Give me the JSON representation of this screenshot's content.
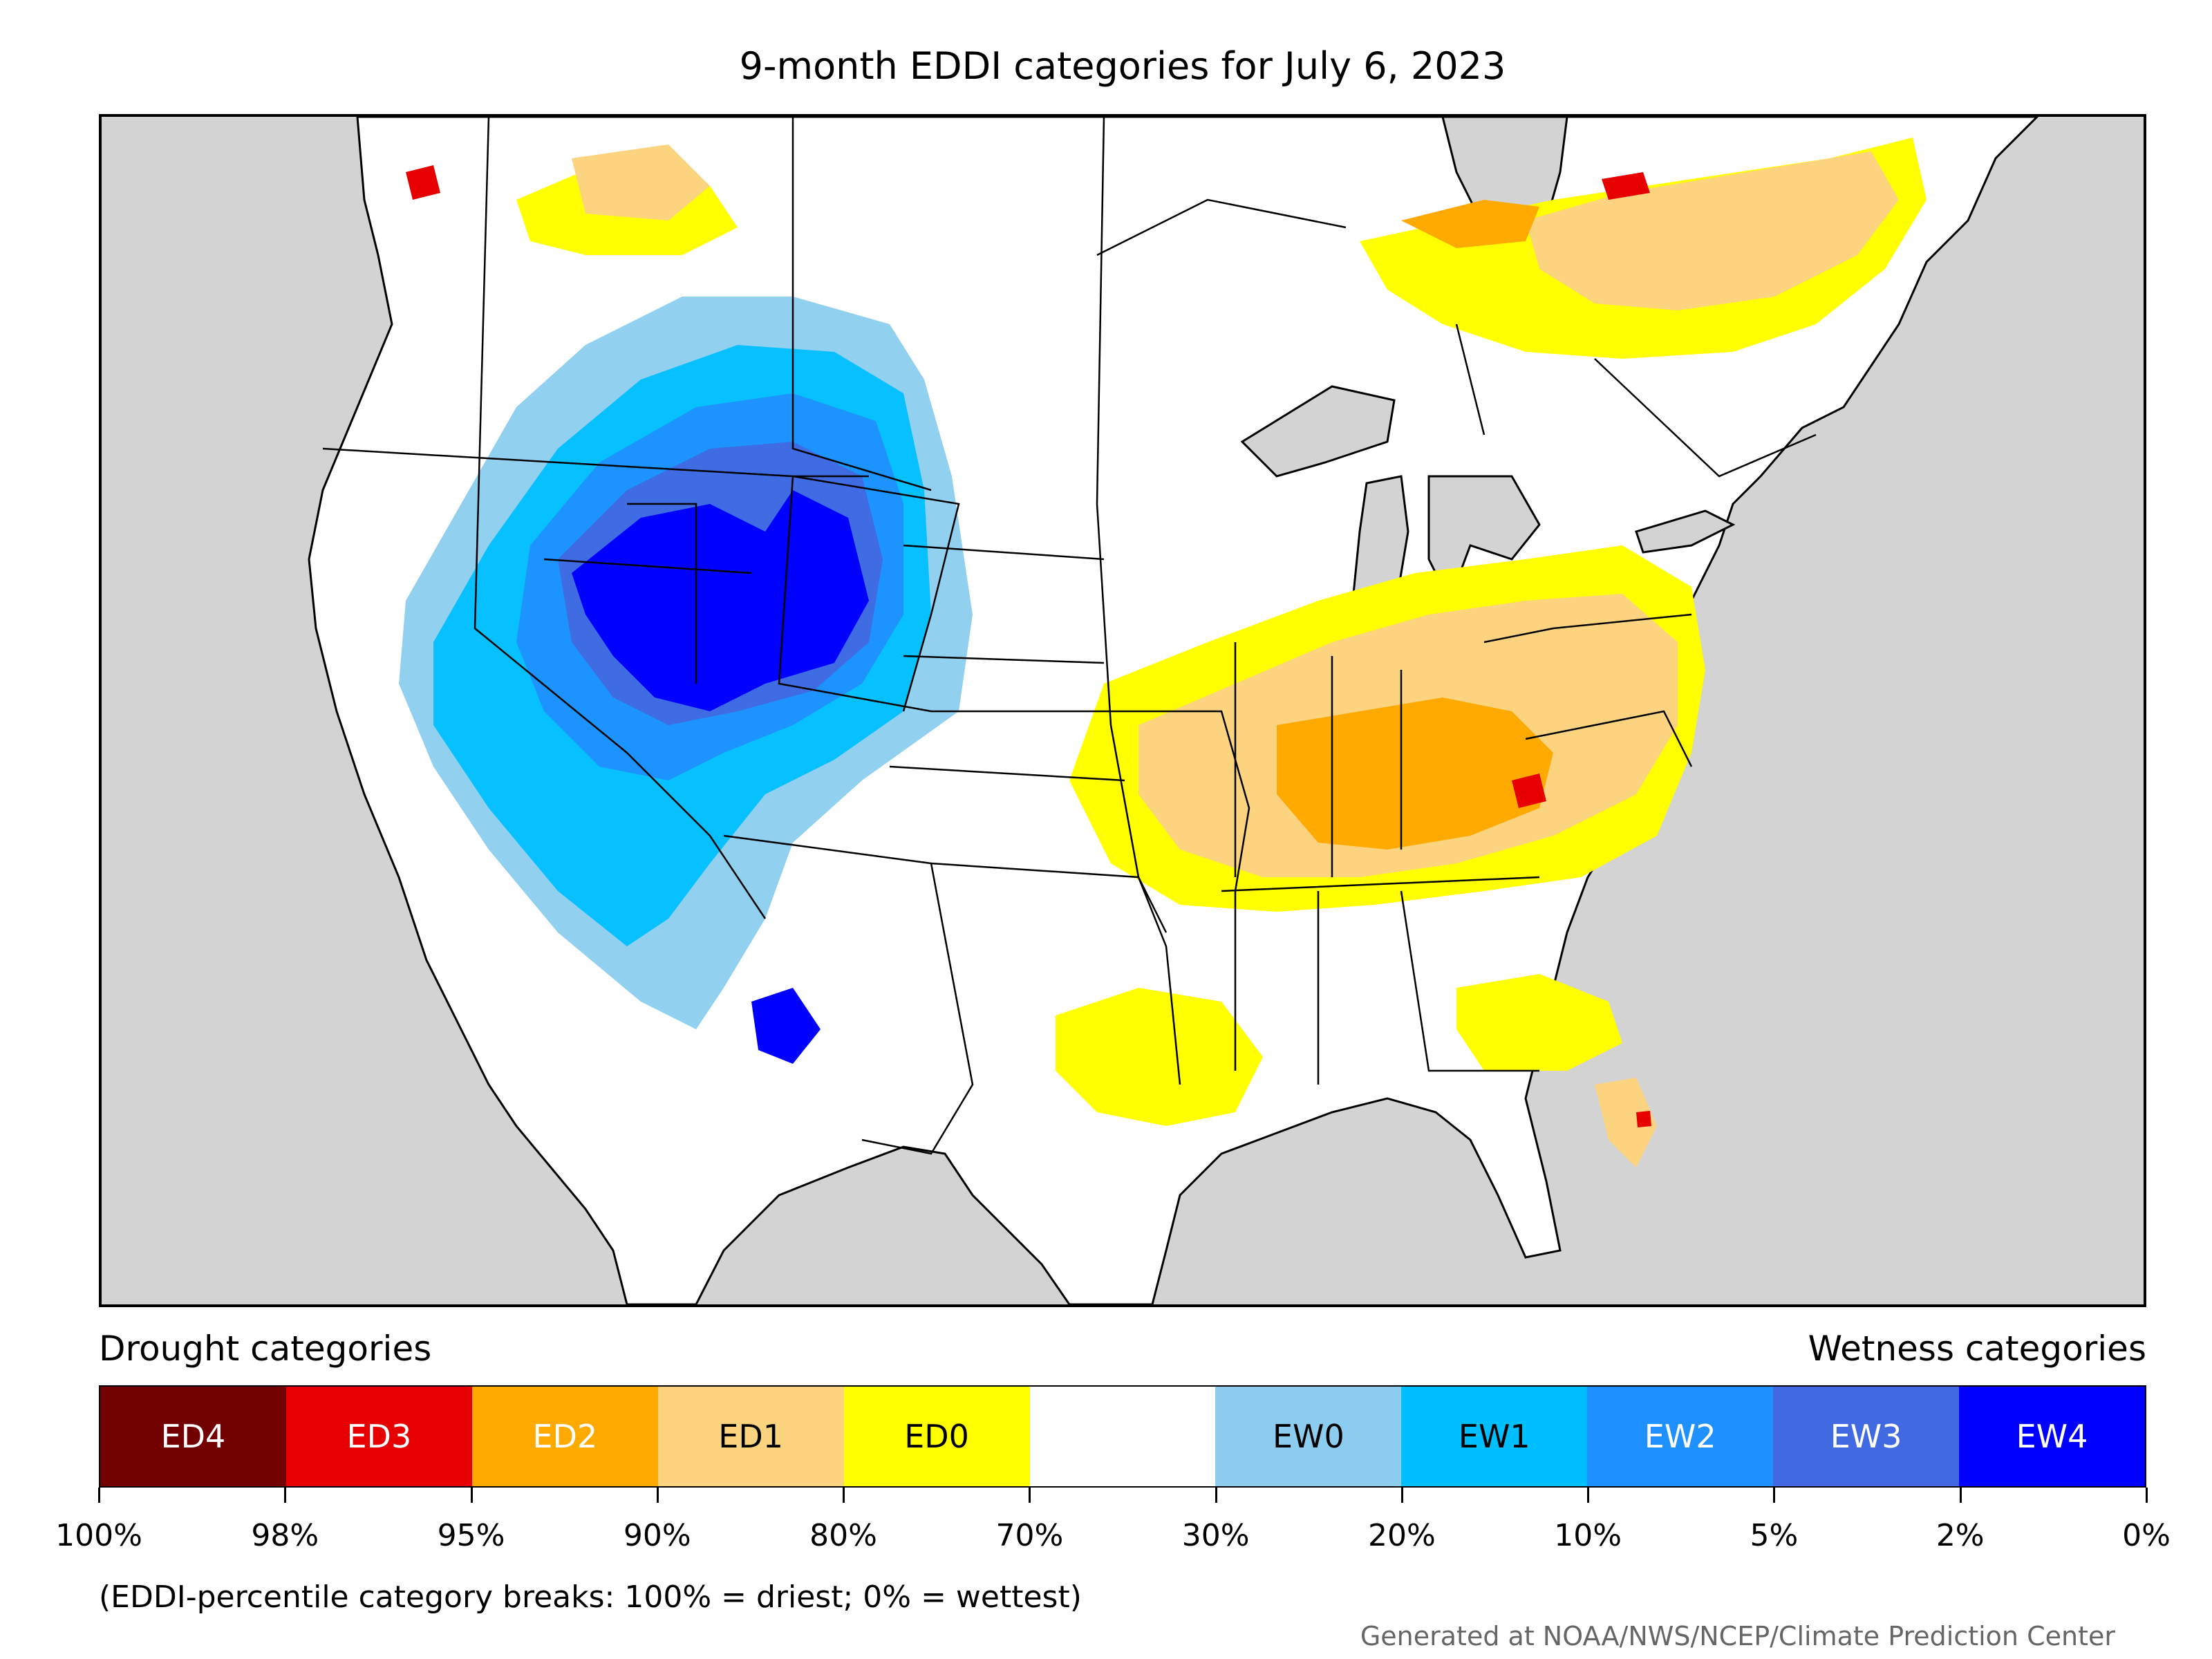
{
  "title": "9-month EDDI categories for July 6, 2023",
  "headers": {
    "drought": "Drought categories",
    "wetness": "Wetness categories"
  },
  "categories": [
    {
      "label": "ED4",
      "color": "#730000",
      "text_color": "#ffffff"
    },
    {
      "label": "ED3",
      "color": "#e60000",
      "text_color": "#ffffff"
    },
    {
      "label": "ED2",
      "color": "#ffaa00",
      "text_color": "#ffffff"
    },
    {
      "label": "ED1",
      "color": "#fcd37f",
      "text_color": "#000000"
    },
    {
      "label": "ED0",
      "color": "#ffff00",
      "text_color": "#000000"
    },
    {
      "label": "",
      "color": "#ffffff",
      "text_color": "#000000"
    },
    {
      "label": "EW0",
      "color": "#8ccdef",
      "text_color": "#000000"
    },
    {
      "label": "EW1",
      "color": "#00bfff",
      "text_color": "#000000"
    },
    {
      "label": "EW2",
      "color": "#1e90ff",
      "text_color": "#ffffff"
    },
    {
      "label": "EW3",
      "color": "#4169e1",
      "text_color": "#ffffff"
    },
    {
      "label": "EW4",
      "color": "#0000ff",
      "text_color": "#ffffff"
    }
  ],
  "breaks": [
    "100%",
    "98%",
    "95%",
    "90%",
    "80%",
    "70%",
    "30%",
    "20%",
    "10%",
    "5%",
    "2%",
    "0%"
  ],
  "note": "(EDDI-percentile category breaks: 100% = driest; 0% = wettest)",
  "credit": "Generated at NOAA/NWS/NCEP/Climate Prediction Center",
  "map_colors": {
    "background": "#d3d3d3",
    "land": "#ffffff",
    "boundary": "#000000"
  }
}
